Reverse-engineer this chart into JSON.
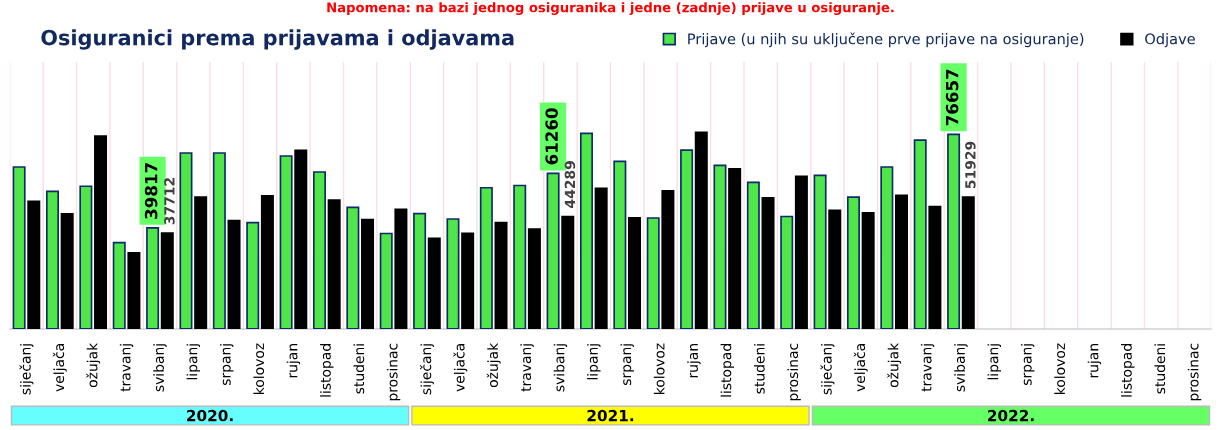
{
  "chart_data": {
    "type": "bar",
    "title": "Osiguranici prema prijavama i odjavama",
    "categories": [
      "siječanj",
      "veljača",
      "ožujak",
      "travanj",
      "svibanj",
      "lipanj",
      "srpanj",
      "kolovoz",
      "rujan",
      "listopad",
      "studeni",
      "prosinac",
      "siječanj",
      "veljača",
      "ožujak",
      "travanj",
      "svibanj",
      "lipanj",
      "srpanj",
      "kolovoz",
      "rujan",
      "listopad",
      "studeni",
      "prosinac",
      "siječanj",
      "veljača",
      "ožujak",
      "travanj",
      "svibanj",
      "lipanj",
      "srpanj",
      "kolovoz",
      "rujan",
      "listopad",
      "studeni",
      "prosinac"
    ],
    "series": [
      {
        "name": "Prijave (u njih su uključene prve prijave na osiguranje)",
        "color": "#50e64a",
        "values": [
          63800,
          54200,
          56200,
          34000,
          39817,
          69300,
          69300,
          41900,
          68100,
          61800,
          47900,
          37600,
          45400,
          43300,
          55600,
          56500,
          61260,
          77000,
          66000,
          43700,
          70400,
          64400,
          57700,
          44300,
          60500,
          51900,
          63800,
          74400,
          76657,
          null,
          null,
          null,
          null,
          null,
          null,
          null
        ],
        "value_labels": [
          null,
          null,
          null,
          null,
          "39817",
          null,
          null,
          null,
          null,
          null,
          null,
          null,
          null,
          null,
          null,
          null,
          "61260",
          null,
          null,
          null,
          null,
          null,
          null,
          null,
          null,
          null,
          null,
          null,
          "76657",
          null,
          null,
          null,
          null,
          null,
          null,
          null
        ]
      },
      {
        "name": "Odjave",
        "color": "#000000",
        "values": [
          50300,
          45300,
          76000,
          30000,
          37712,
          51900,
          42700,
          52400,
          70300,
          50800,
          43100,
          47100,
          35700,
          37700,
          41900,
          39300,
          44289,
          55400,
          43800,
          54400,
          77400,
          63100,
          51600,
          60100,
          46700,
          45700,
          52600,
          48200,
          51929,
          null,
          null,
          null,
          null,
          null,
          null,
          null
        ],
        "value_labels": [
          null,
          null,
          null,
          null,
          "37712",
          null,
          null,
          null,
          null,
          null,
          null,
          null,
          null,
          null,
          null,
          null,
          "44289",
          null,
          null,
          null,
          null,
          null,
          null,
          null,
          null,
          null,
          null,
          null,
          "51929",
          null,
          null,
          null,
          null,
          null,
          null,
          null
        ]
      }
    ],
    "ylim": [
      0,
      105000
    ],
    "tick_labels": "x",
    "grid": "x",
    "legend": "top right",
    "annotations": [
      "Napomena: na bazi jednog osiguranika i jedne (zadnje) prijave u osiguranje.",
      "2020.",
      "2021.",
      "2022."
    ]
  }
}
